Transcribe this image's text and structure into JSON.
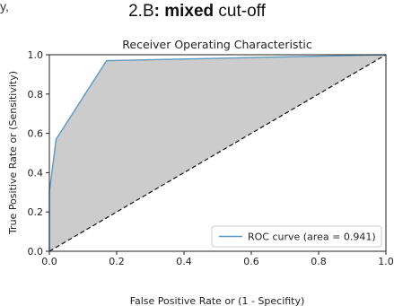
{
  "page": {
    "top_left_fragment": "y,",
    "caption_prefix": "2.B",
    "caption_bold": ": mixed",
    "caption_suffix": " cut-off"
  },
  "chart_data": {
    "type": "line",
    "title": "Receiver Operating Characteristic",
    "xlabel": "False Positive Rate or (1 - Specifity)",
    "ylabel": "True Positive Rate or (Sensitivity)",
    "xlim": [
      0.0,
      1.0
    ],
    "ylim": [
      0.0,
      1.0
    ],
    "x_ticks": [
      "0.0",
      "0.2",
      "0.4",
      "0.6",
      "0.8",
      "1.0"
    ],
    "y_ticks": [
      "0.0",
      "0.2",
      "0.4",
      "0.6",
      "0.8",
      "1.0"
    ],
    "grid": false,
    "legend_position": "lower-right",
    "series": [
      {
        "name": "ROC curve (area = 0.941)",
        "color": "#5b9bbf",
        "x": [
          0.0,
          0.0,
          0.02,
          0.17,
          1.0
        ],
        "y": [
          0.0,
          0.3,
          0.57,
          0.97,
          1.0
        ]
      }
    ],
    "reference_line": {
      "x": [
        0.0,
        1.0
      ],
      "y": [
        0.0,
        1.0
      ],
      "color": "#111111",
      "style": "dashed"
    },
    "fill_color": "#cccccc"
  }
}
